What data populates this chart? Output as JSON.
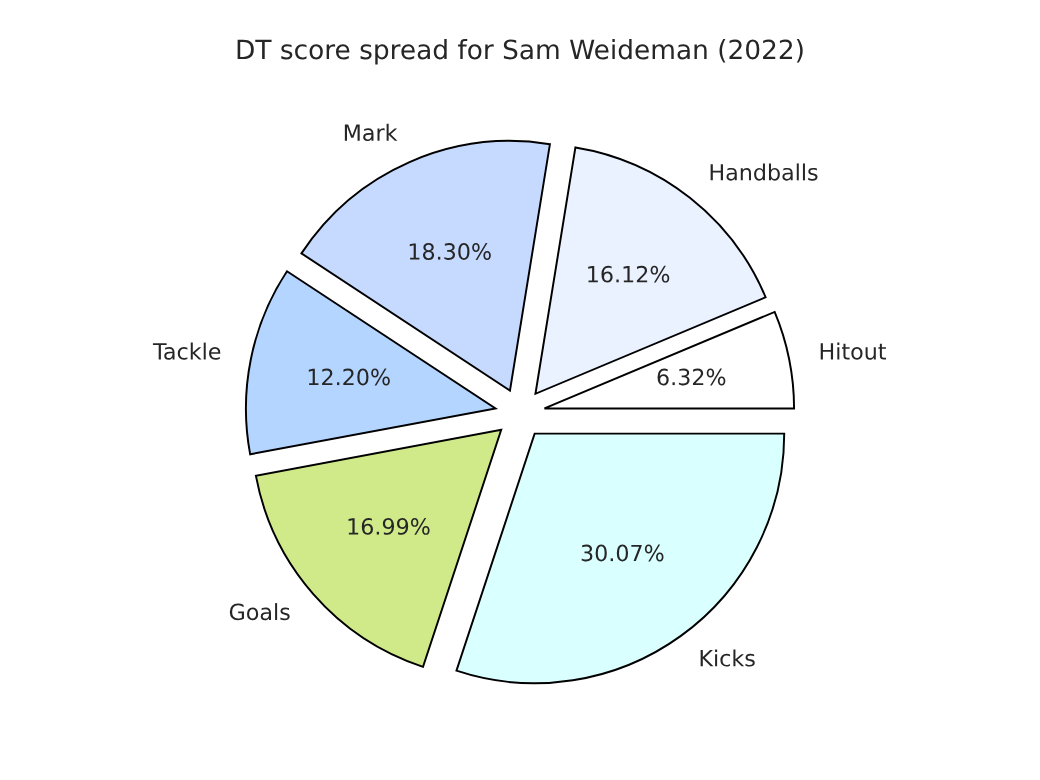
{
  "chart_data": {
    "type": "pie",
    "title": "DT score spread for Sam Weideman (2022)",
    "categories": [
      "Hitout",
      "Handballs",
      "Mark",
      "Tackle",
      "Goals",
      "Kicks"
    ],
    "values": [
      6.32,
      16.12,
      18.3,
      12.2,
      16.99,
      30.07
    ],
    "value_labels": [
      "6.32%",
      "16.12%",
      "18.30%",
      "12.20%",
      "16.99%",
      "30.07%"
    ],
    "colors": [
      "#ffffff",
      "#eaf2ff",
      "#c6d9ff",
      "#b3d5ff",
      "#d0ea8a",
      "#d9ffff"
    ],
    "legend": false
  }
}
